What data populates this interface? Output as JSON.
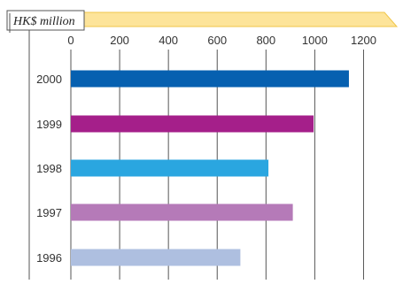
{
  "chart_data": {
    "type": "bar",
    "orientation": "horizontal",
    "unit_label": "HK$ million",
    "categories": [
      "2000",
      "1999",
      "1998",
      "1997",
      "1996"
    ],
    "values": [
      1140,
      995,
      810,
      910,
      695
    ],
    "xlim": [
      0,
      1300
    ],
    "x_ticks": [
      0,
      200,
      400,
      600,
      800,
      1000,
      1200
    ],
    "grid": true,
    "colors": {
      "bars": [
        "#0660b0",
        "#a51f8a",
        "#2aa6e0",
        "#b57ab8",
        "#aebfe0"
      ],
      "header_band": "#fde49a",
      "header_band_edge": "#f0c64a",
      "gridline": "#555555"
    }
  }
}
